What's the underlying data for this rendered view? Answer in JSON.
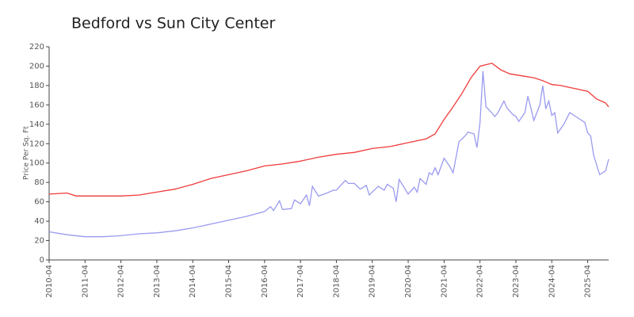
{
  "chart_data": {
    "type": "line",
    "title": "Bedford vs Sun City Center",
    "y_label": "Price Per Sq. Ft",
    "xlim": [
      "2010-04",
      "2025-11"
    ],
    "xticks": [
      "2010-04",
      "2011-04",
      "2012-04",
      "2013-04",
      "2014-04",
      "2015-04",
      "2016-04",
      "2017-04",
      "2018-04",
      "2019-04",
      "2020-04",
      "2021-04",
      "2022-04",
      "2023-04",
      "2024-04",
      "2025-04"
    ],
    "ylim": [
      0,
      220
    ],
    "yticks": [
      0,
      20,
      40,
      60,
      80,
      100,
      120,
      140,
      160,
      180,
      200,
      220
    ],
    "series": [
      {
        "color": "#f03a3a",
        "x": [
          "2010-04",
          "2010-10",
          "2011-01",
          "2011-10",
          "2012-04",
          "2012-10",
          "2013-04",
          "2013-10",
          "2014-04",
          "2014-10",
          "2015-04",
          "2015-10",
          "2016-04",
          "2016-10",
          "2017-04",
          "2017-10",
          "2018-04",
          "2018-10",
          "2019-04",
          "2019-10",
          "2020-04",
          "2020-10",
          "2021-01",
          "2021-04",
          "2021-07",
          "2021-10",
          "2022-01",
          "2022-04",
          "2022-08",
          "2022-11",
          "2023-02",
          "2023-06",
          "2023-10",
          "2024-01",
          "2024-04",
          "2024-07",
          "2024-10",
          "2025-01",
          "2025-04",
          "2025-07",
          "2025-10",
          "2025-11"
        ],
        "values": [
          68,
          69,
          66,
          66,
          66,
          67,
          70,
          73,
          78,
          84,
          88,
          92,
          97,
          99,
          102,
          106,
          109,
          111,
          115,
          117,
          121,
          125,
          130,
          145,
          158,
          172,
          188,
          200,
          203,
          196,
          192,
          190,
          188,
          185,
          181,
          180,
          178,
          176,
          174,
          166,
          162,
          158
        ]
      },
      {
        "color": "#9a9af0",
        "x": [
          "2010-04",
          "2010-10",
          "2011-04",
          "2011-10",
          "2012-04",
          "2012-10",
          "2013-04",
          "2013-10",
          "2014-04",
          "2014-10",
          "2015-04",
          "2015-10",
          "2016-04",
          "2016-06",
          "2016-07",
          "2016-09",
          "2016-10",
          "2017-01",
          "2017-02",
          "2017-04",
          "2017-06",
          "2017-07",
          "2017-08",
          "2017-10",
          "2017-12",
          "2018-03",
          "2018-04",
          "2018-07",
          "2018-08",
          "2018-10",
          "2018-12",
          "2019-02",
          "2019-03",
          "2019-05",
          "2019-06",
          "2019-08",
          "2019-09",
          "2019-11",
          "2019-12",
          "2020-01",
          "2020-02",
          "2020-04",
          "2020-06",
          "2020-07",
          "2020-08",
          "2020-10",
          "2020-11",
          "2020-12",
          "2021-01",
          "2021-02",
          "2021-04",
          "2021-06",
          "2021-07",
          "2021-09",
          "2021-11",
          "2021-12",
          "2022-02",
          "2022-03",
          "2022-04",
          "2022-05",
          "2022-06",
          "2022-07",
          "2022-09",
          "2022-10",
          "2022-12",
          "2023-01",
          "2023-03",
          "2023-04",
          "2023-05",
          "2023-07",
          "2023-08",
          "2023-09",
          "2023-10",
          "2023-12",
          "2024-01",
          "2024-02",
          "2024-03",
          "2024-04",
          "2024-05",
          "2024-06",
          "2024-08",
          "2024-10",
          "2024-12",
          "2025-03",
          "2025-04",
          "2025-05",
          "2025-06",
          "2025-08",
          "2025-10",
          "2025-11"
        ],
        "values": [
          29,
          26,
          24,
          24,
          25,
          27,
          28,
          30,
          33,
          37,
          41,
          45,
          50,
          55,
          51,
          61,
          52,
          53,
          62,
          58,
          67,
          56,
          76,
          66,
          68,
          72,
          72,
          82,
          79,
          79,
          73,
          77,
          67,
          73,
          76,
          72,
          78,
          74,
          60,
          83,
          78,
          68,
          75,
          70,
          84,
          78,
          90,
          88,
          95,
          88,
          105,
          96,
          90,
          122,
          128,
          132,
          130,
          116,
          142,
          195,
          158,
          155,
          148,
          152,
          164,
          157,
          150,
          148,
          143,
          152,
          169,
          157,
          144,
          160,
          180,
          156,
          164,
          149,
          152,
          131,
          140,
          152,
          148,
          142,
          131,
          128,
          108,
          88,
          92,
          104
        ]
      }
    ]
  }
}
